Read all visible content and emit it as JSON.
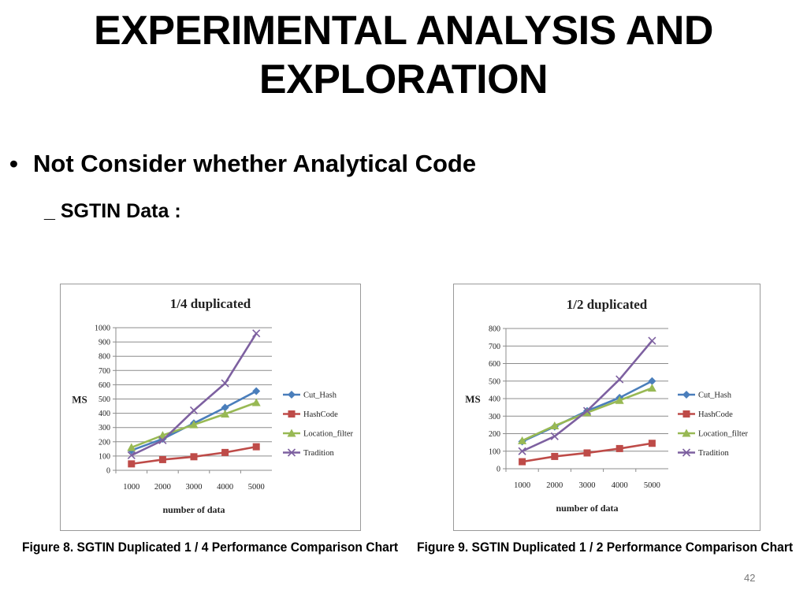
{
  "slide": {
    "title_line1": "EXPERIMENTAL ANALYSIS AND",
    "title_line2": "EXPLORATION",
    "bullet": "Not Consider whether Analytical Code",
    "bullet_marker": "•",
    "subtitle": "_ SGTIN Data :",
    "caption_1": "Figure 8. SGTIN Duplicated 1 / 4 Performance Comparison Chart",
    "caption_2": "Figure 9. SGTIN Duplicated 1 / 2 Performance Comparison Chart",
    "page_number": "42"
  },
  "chart_data": [
    {
      "type": "line",
      "title": "1/4 duplicated",
      "xlabel": "number of data",
      "ylabel": "MS",
      "categories": [
        "1000",
        "2000",
        "3000",
        "4000",
        "5000"
      ],
      "ylim": [
        0,
        1000
      ],
      "yticks": [
        0,
        100,
        200,
        300,
        400,
        500,
        600,
        700,
        800,
        900,
        1000
      ],
      "grid": true,
      "legend_position": "right",
      "series": [
        {
          "name": "Cut_Hash",
          "color": "#4a7ebb",
          "marker": "diamond",
          "values": [
            140,
            220,
            330,
            440,
            555
          ]
        },
        {
          "name": "HashCode",
          "color": "#be4b48",
          "marker": "square",
          "values": [
            45,
            75,
            95,
            125,
            165
          ]
        },
        {
          "name": "Location_filter",
          "color": "#98b954",
          "marker": "triangle",
          "values": [
            160,
            245,
            320,
            395,
            475
          ]
        },
        {
          "name": "Tradition",
          "color": "#7d60a0",
          "marker": "x",
          "values": [
            105,
            210,
            420,
            610,
            960
          ]
        }
      ]
    },
    {
      "type": "line",
      "title": "1/2 duplicated",
      "xlabel": "number of data",
      "ylabel": "MS",
      "categories": [
        "1000",
        "2000",
        "3000",
        "4000",
        "5000"
      ],
      "ylim": [
        0,
        800
      ],
      "yticks": [
        0,
        100,
        200,
        300,
        400,
        500,
        600,
        700,
        800
      ],
      "grid": true,
      "legend_position": "right",
      "series": [
        {
          "name": "Cut_Hash",
          "color": "#4a7ebb",
          "marker": "diamond",
          "values": [
            155,
            240,
            330,
            405,
            500
          ]
        },
        {
          "name": "HashCode",
          "color": "#be4b48",
          "marker": "square",
          "values": [
            40,
            70,
            90,
            115,
            145
          ]
        },
        {
          "name": "Location_filter",
          "color": "#98b954",
          "marker": "triangle",
          "values": [
            160,
            245,
            320,
            390,
            460
          ]
        },
        {
          "name": "Tradition",
          "color": "#7d60a0",
          "marker": "x",
          "values": [
            100,
            185,
            330,
            510,
            730
          ]
        }
      ]
    }
  ]
}
